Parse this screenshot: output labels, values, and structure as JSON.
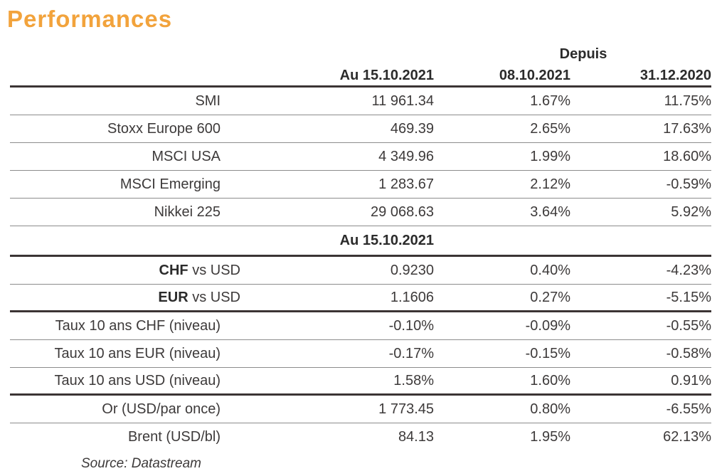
{
  "title": "Performances",
  "colors": {
    "accent": "#f2a33c",
    "body_text": "#3d3a3a",
    "header_text": "#2b2b2b",
    "thick_line": "#3b3434",
    "thin_line": "#8c8c8c"
  },
  "header": {
    "depuis_label": "Depuis",
    "columns": [
      "Au 15.10.2021",
      "08.10.2021",
      "31.12.2020"
    ]
  },
  "mid_header": "Au 15.10.2021",
  "sections": {
    "indices": [
      {
        "label": "SMI",
        "value": "11 961.34",
        "since_week": "1.67%",
        "since_ytd": "11.75%"
      },
      {
        "label": "Stoxx Europe 600",
        "value": "469.39",
        "since_week": "2.65%",
        "since_ytd": "17.63%"
      },
      {
        "label": "MSCI USA",
        "value": "4 349.96",
        "since_week": "1.99%",
        "since_ytd": "18.60%"
      },
      {
        "label": "MSCI Emerging",
        "value": "1 283.67",
        "since_week": "2.12%",
        "since_ytd": "-0.59%"
      },
      {
        "label": "Nikkei 225",
        "value": "29 068.63",
        "since_week": "3.64%",
        "since_ytd": "5.92%"
      }
    ],
    "fx": [
      {
        "label_bold": "CHF",
        "label_rest": " vs USD",
        "value": "0.9230",
        "since_week": "0.40%",
        "since_ytd": "-4.23%"
      },
      {
        "label_bold": "EUR",
        "label_rest": " vs USD",
        "value": "1.1606",
        "since_week": "0.27%",
        "since_ytd": "-5.15%"
      }
    ],
    "rates": [
      {
        "label": "Taux 10 ans CHF (niveau)",
        "value": "-0.10%",
        "since_week": "-0.09%",
        "since_ytd": "-0.55%"
      },
      {
        "label": "Taux 10 ans EUR (niveau)",
        "value": "-0.17%",
        "since_week": "-0.15%",
        "since_ytd": "-0.58%"
      },
      {
        "label": "Taux 10 ans USD (niveau)",
        "value": "1.58%",
        "since_week": "1.60%",
        "since_ytd": "0.91%"
      }
    ],
    "commodities": [
      {
        "label": "Or (USD/par once)",
        "value": "1 773.45",
        "since_week": "0.80%",
        "since_ytd": "-6.55%"
      },
      {
        "label": "Brent (USD/bl)",
        "value": "84.13",
        "since_week": "1.95%",
        "since_ytd": "62.13%"
      }
    ]
  },
  "source": "Source: Datastream"
}
